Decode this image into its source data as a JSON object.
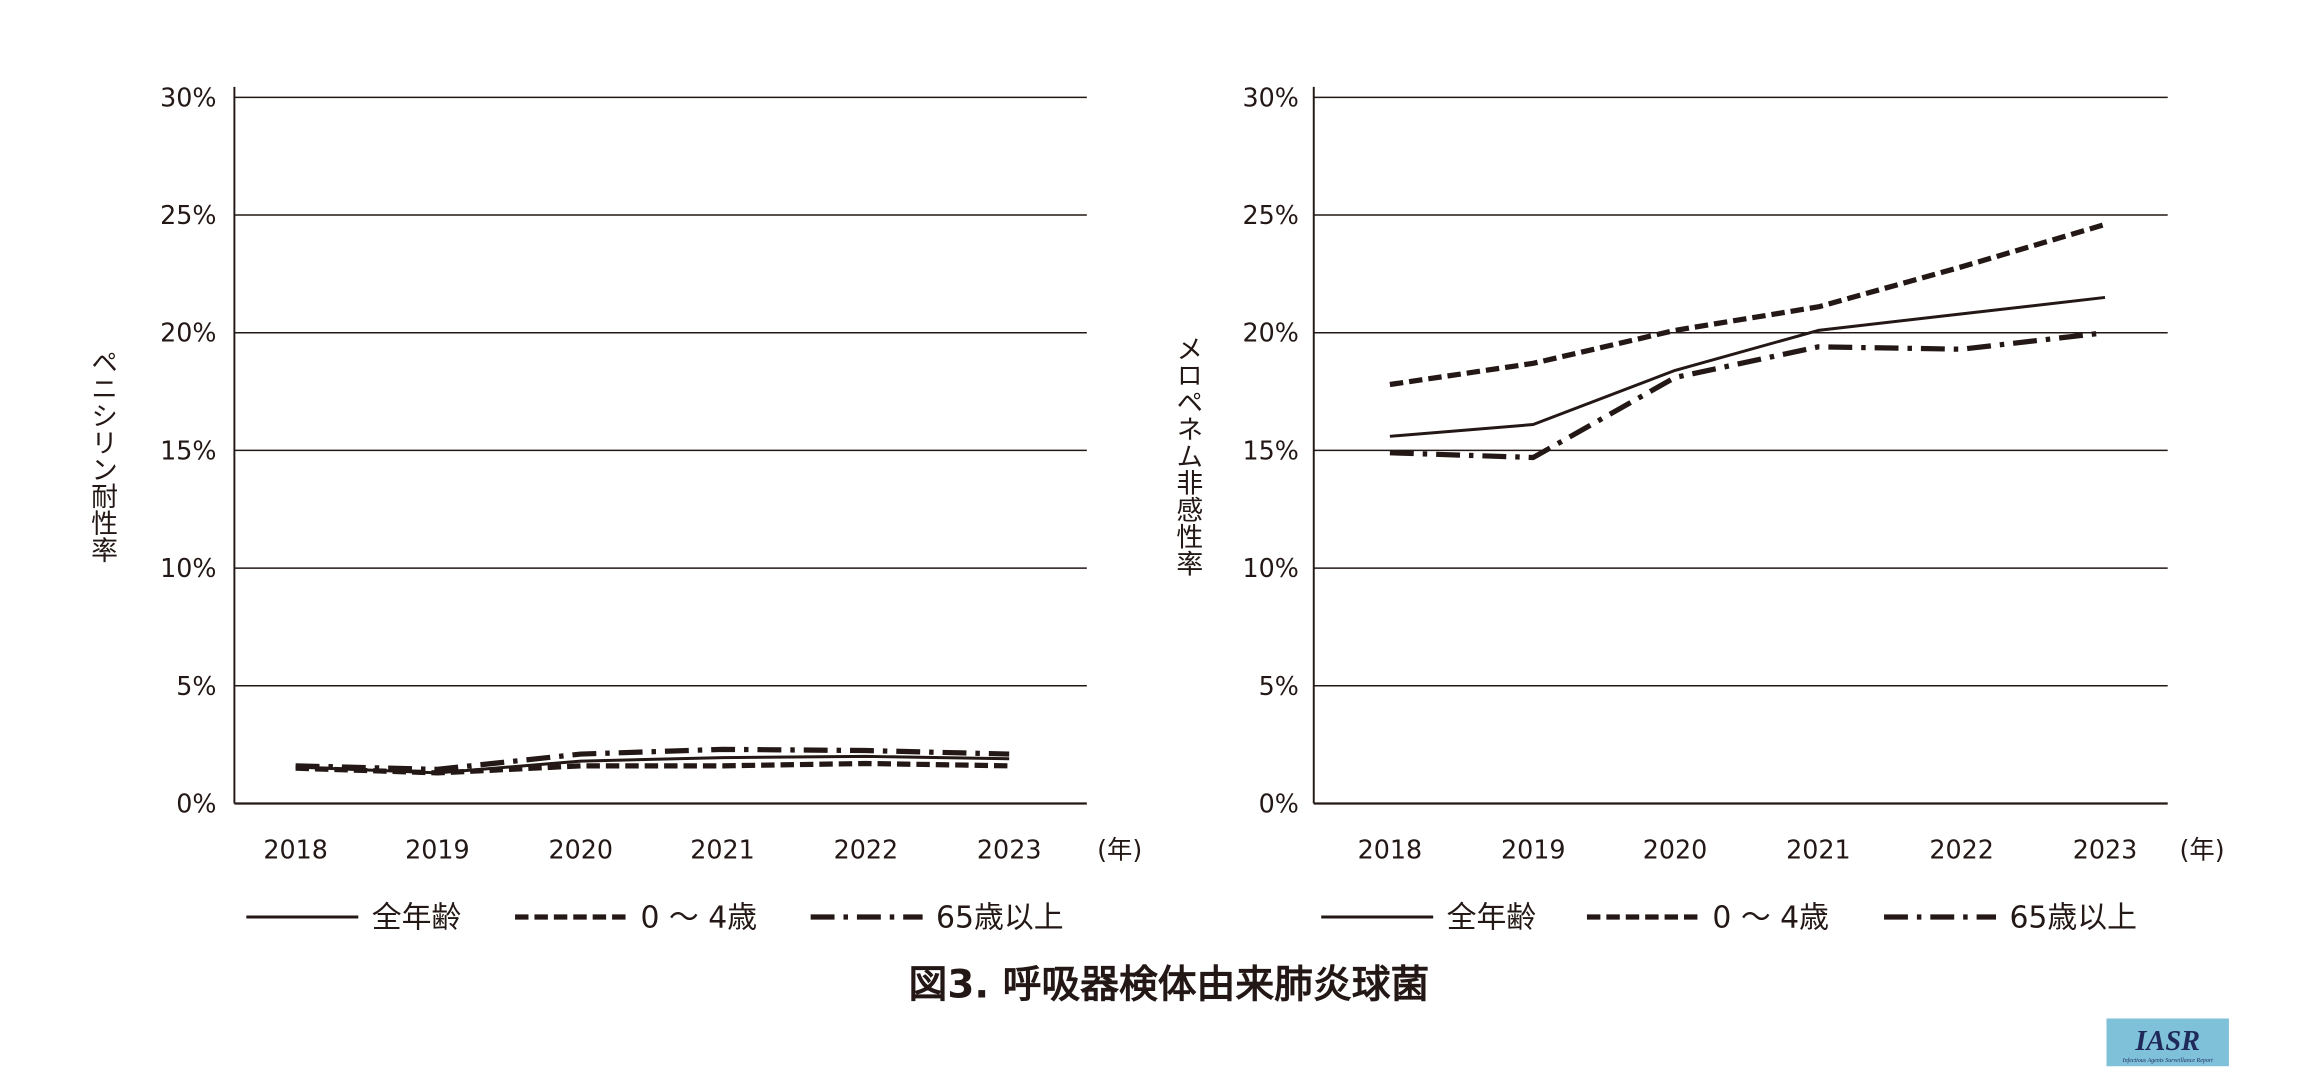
{
  "figure_title": "図3. 呼吸器検体由来肺炎球菌",
  "logo": {
    "main": "IASR",
    "sub": "Infectious Agents Surveillance Report",
    "color": "#7fc1d9"
  },
  "colors": {
    "line": "#231815",
    "grid": "#231815"
  },
  "chart_data": [
    {
      "type": "line",
      "ylabel": "ペニシリン耐性率",
      "xlabel_unit": "(年)",
      "categories": [
        "2018",
        "2019",
        "2020",
        "2021",
        "2022",
        "2023"
      ],
      "ylim": [
        0,
        30
      ],
      "yticks": [
        0,
        5,
        10,
        15,
        20,
        25,
        30
      ],
      "ytick_labels": [
        "0%",
        "5%",
        "10%",
        "15%",
        "20%",
        "25%",
        "30%"
      ],
      "grid": true,
      "legend_position": "bottom",
      "series": [
        {
          "name": "全年齢",
          "style": "solid",
          "values": [
            1.55,
            1.3,
            1.8,
            1.95,
            2.0,
            1.9
          ]
        },
        {
          "name": "0 ～ 4歳",
          "style": "dashed",
          "values": [
            1.5,
            1.3,
            1.6,
            1.6,
            1.7,
            1.6
          ]
        },
        {
          "name": "65歳以上",
          "style": "dashdot",
          "values": [
            1.6,
            1.45,
            2.1,
            2.3,
            2.25,
            2.1
          ]
        }
      ]
    },
    {
      "type": "line",
      "ylabel": "メロペネム非感性率",
      "xlabel_unit": "(年)",
      "categories": [
        "2018",
        "2019",
        "2020",
        "2021",
        "2022",
        "2023"
      ],
      "ylim": [
        0,
        30
      ],
      "yticks": [
        0,
        5,
        10,
        15,
        20,
        25,
        30
      ],
      "ytick_labels": [
        "0%",
        "5%",
        "10%",
        "15%",
        "20%",
        "25%",
        "30%"
      ],
      "grid": true,
      "legend_position": "bottom",
      "series": [
        {
          "name": "全年齢",
          "style": "solid",
          "values": [
            15.6,
            16.1,
            18.4,
            20.1,
            20.8,
            21.5
          ]
        },
        {
          "name": "0 ～ 4歳",
          "style": "dashed",
          "values": [
            17.8,
            18.7,
            20.1,
            21.1,
            22.8,
            24.6
          ]
        },
        {
          "name": "65歳以上",
          "style": "dashdot",
          "values": [
            14.9,
            14.7,
            18.1,
            19.4,
            19.3,
            20.0
          ]
        }
      ]
    }
  ]
}
